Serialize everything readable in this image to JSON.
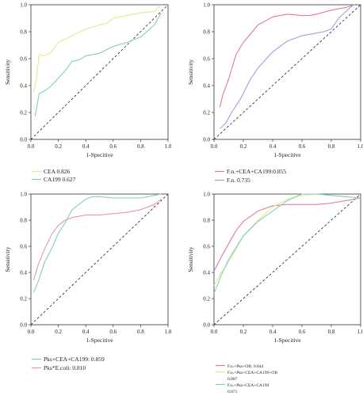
{
  "chart_data": [
    {
      "type": "line",
      "xlabel": "1-Specitive",
      "ylabel": "Sensitivity",
      "xlim": [
        0,
        1
      ],
      "ylim": [
        0,
        1
      ],
      "ticks": [
        "0.0",
        "0.2",
        "0.4",
        "0.6",
        "0.8",
        "1.0"
      ],
      "legend_position": "below",
      "series": [
        {
          "name": "CEA 0.826",
          "color": "#ede48a",
          "x": [
            0.02,
            0.04,
            0.06,
            0.1,
            0.15,
            0.2,
            0.3,
            0.4,
            0.5,
            0.55,
            0.6,
            0.65,
            0.7,
            0.8,
            0.9,
            0.95
          ],
          "y": [
            0.35,
            0.45,
            0.63,
            0.62,
            0.65,
            0.72,
            0.77,
            0.82,
            0.85,
            0.86,
            0.9,
            0.91,
            0.92,
            0.94,
            0.95,
            1.0
          ]
        },
        {
          "name": "CA199 0.627",
          "color": "#7fd1bb",
          "x": [
            0.03,
            0.06,
            0.1,
            0.15,
            0.25,
            0.3,
            0.35,
            0.4,
            0.45,
            0.5,
            0.6,
            0.7,
            0.8,
            0.9,
            0.95
          ],
          "y": [
            0.17,
            0.34,
            0.36,
            0.4,
            0.51,
            0.58,
            0.59,
            0.62,
            0.63,
            0.64,
            0.69,
            0.72,
            0.76,
            0.85,
            0.94
          ]
        }
      ],
      "reference_line": true
    },
    {
      "type": "line",
      "xlabel": "1-Specitive",
      "ylabel": "Sensitivity",
      "xlim": [
        0,
        1
      ],
      "ylim": [
        0,
        1
      ],
      "ticks": [
        "0.0",
        "0.2",
        "0.4",
        "0.6",
        "0.8",
        "1.0"
      ],
      "legend_position": "below",
      "series": [
        {
          "name": "F.n.+CEA+CA199:0.855",
          "color": "#e07b9a",
          "x": [
            0.04,
            0.06,
            0.1,
            0.15,
            0.2,
            0.3,
            0.4,
            0.5,
            0.6,
            0.65,
            0.7,
            0.8,
            0.9,
            0.96
          ],
          "y": [
            0.24,
            0.33,
            0.45,
            0.63,
            0.72,
            0.85,
            0.91,
            0.93,
            0.92,
            0.92,
            0.93,
            0.96,
            0.98,
            1.0
          ]
        },
        {
          "name": "F.n. 0.735",
          "color": "#a59be0",
          "x": [
            0.04,
            0.08,
            0.12,
            0.18,
            0.25,
            0.3,
            0.4,
            0.5,
            0.6,
            0.7,
            0.75,
            0.8,
            0.85,
            0.9,
            0.95
          ],
          "y": [
            0.08,
            0.12,
            0.2,
            0.3,
            0.45,
            0.53,
            0.65,
            0.73,
            0.77,
            0.79,
            0.8,
            0.82,
            0.9,
            0.95,
            1.0
          ]
        }
      ],
      "reference_line": true
    },
    {
      "type": "line",
      "xlabel": "1-Specitive",
      "ylabel": "Sensitivity",
      "xlim": [
        0,
        1
      ],
      "ylim": [
        0,
        1
      ],
      "ticks": [
        "0.0",
        "0.2",
        "0.4",
        "0.6",
        "0.8",
        "1.0"
      ],
      "legend_position": "below",
      "series": [
        {
          "name": "Pks+CEA+CA199: 0.859",
          "color": "#7fd1bb",
          "x": [
            0.02,
            0.05,
            0.1,
            0.15,
            0.2,
            0.25,
            0.3,
            0.4,
            0.45,
            0.5,
            0.6,
            0.7,
            0.8,
            0.9,
            0.95
          ],
          "y": [
            0.25,
            0.32,
            0.48,
            0.58,
            0.7,
            0.78,
            0.88,
            0.96,
            0.98,
            0.98,
            0.97,
            0.97,
            0.97,
            0.99,
            1.0
          ]
        },
        {
          "name": "Pks*E.coli: 0.810",
          "color": "#e69aa8",
          "x": [
            0.02,
            0.05,
            0.1,
            0.15,
            0.2,
            0.25,
            0.3,
            0.4,
            0.5,
            0.6,
            0.7,
            0.8,
            0.9,
            0.95
          ],
          "y": [
            0.34,
            0.45,
            0.58,
            0.69,
            0.76,
            0.8,
            0.82,
            0.84,
            0.84,
            0.85,
            0.86,
            0.88,
            0.92,
            0.96
          ]
        }
      ],
      "reference_line": true
    },
    {
      "type": "line",
      "xlabel": "1-Specitive",
      "ylabel": "Sensitivity",
      "xlim": [
        0,
        1
      ],
      "ylim": [
        0,
        1
      ],
      "ticks": [
        "0.0",
        "0.2",
        "0.4",
        "0.6",
        "0.8",
        "1.0"
      ],
      "legend_position": "below",
      "series": [
        {
          "name": "F.n.+Pks+OB: 0.844",
          "color": "#e07b9a",
          "x": [
            0.0,
            0.05,
            0.1,
            0.15,
            0.2,
            0.3,
            0.4,
            0.5,
            0.6,
            0.7,
            0.8,
            0.9,
            1.0
          ],
          "y": [
            0.41,
            0.52,
            0.62,
            0.72,
            0.79,
            0.87,
            0.91,
            0.92,
            0.92,
            0.92,
            0.93,
            0.95,
            0.97
          ]
        },
        {
          "name": "F.n.+Pks+CEA+CA199+OB",
          "value_label": "0.887",
          "color": "#ede48a",
          "x": [
            0.0,
            0.05,
            0.1,
            0.2,
            0.3,
            0.4,
            0.5,
            0.6,
            0.7,
            0.8,
            0.9,
            1.0
          ],
          "y": [
            0.3,
            0.4,
            0.48,
            0.68,
            0.8,
            0.9,
            0.96,
            0.99,
            1.0,
            0.99,
            0.98,
            0.97
          ]
        },
        {
          "name": "F.n.+Pks+CEA+CA199",
          "value_label": "0.871",
          "color": "#7fd1bb",
          "x": [
            0.0,
            0.05,
            0.1,
            0.2,
            0.3,
            0.4,
            0.5,
            0.6,
            0.7,
            0.8,
            0.9,
            1.0
          ],
          "y": [
            0.24,
            0.38,
            0.5,
            0.68,
            0.79,
            0.87,
            0.95,
            1.0,
            1.0,
            0.99,
            0.98,
            0.97
          ]
        }
      ],
      "reference_line": true
    }
  ]
}
